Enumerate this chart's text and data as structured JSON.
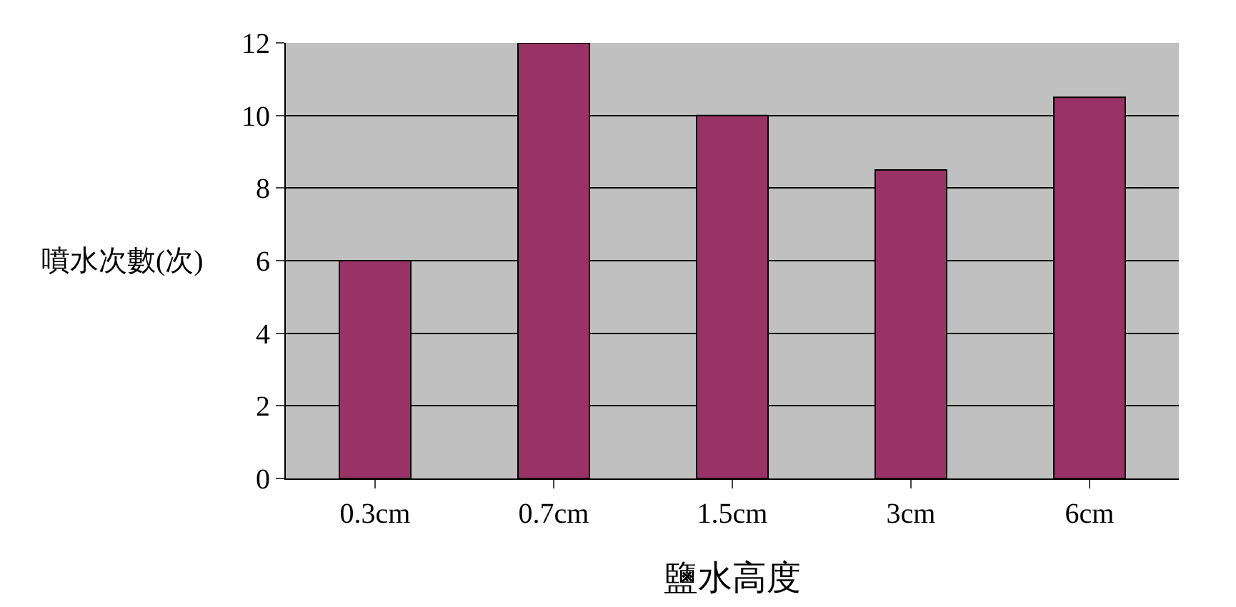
{
  "chart_data": {
    "type": "bar",
    "xlabel": "鹽水高度",
    "ylabel": "噴水次數(次)",
    "categories": [
      "0.3cm",
      "0.7cm",
      "1.5cm",
      "3cm",
      "6cm"
    ],
    "values": [
      6,
      12,
      10,
      8.5,
      10.5
    ],
    "color": "#993366",
    "ylim": [
      0,
      12
    ],
    "yticks": [
      0,
      2,
      4,
      6,
      8,
      10,
      12
    ],
    "grid": "y",
    "legend": false
  }
}
